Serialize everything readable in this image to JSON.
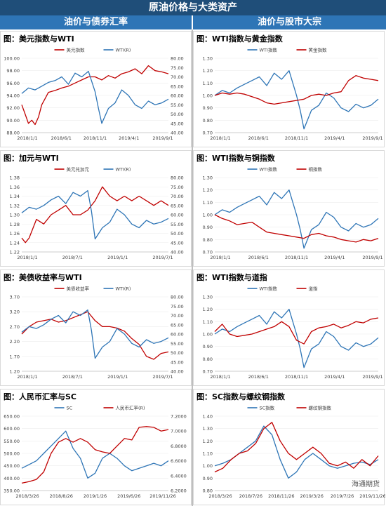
{
  "header": {
    "title": "原油价格与大类资产",
    "left_section": "油价与债券汇率",
    "right_section": "油价与股市大宗"
  },
  "watermark": "海通期货",
  "chart_data": [
    {
      "type": "line",
      "title": "图：美元指数与WTI",
      "xticks": [
        "2018/1/1",
        "2018/6/1",
        "2018/11/1",
        "2019/4/1",
        "2019/9/1"
      ],
      "xrange": [
        0,
        22
      ],
      "left_axis": {
        "min": 88,
        "max": 100,
        "ticks": [
          "100.00",
          "98.00",
          "96.00",
          "94.00",
          "92.00",
          "90.00",
          "88.00"
        ]
      },
      "right_axis": {
        "min": 40,
        "max": 80,
        "ticks": [
          "80.00",
          "75.00",
          "70.00",
          "65.00",
          "60.00",
          "55.00",
          "50.00",
          "45.00",
          "40.00"
        ]
      },
      "series": [
        {
          "name": "美元指数",
          "axis": "left",
          "color": "#c00000",
          "x": [
            0,
            0.5,
            1,
            1.5,
            2,
            2.5,
            3,
            3.5,
            4,
            5,
            6,
            7,
            8,
            9,
            10,
            11,
            12,
            13,
            14,
            15,
            16,
            17,
            18,
            19,
            20,
            21,
            22
          ],
          "y": [
            92.5,
            91,
            89.5,
            90,
            89.3,
            90.5,
            92.5,
            93.5,
            94.5,
            94.8,
            95.2,
            95.5,
            96,
            96.5,
            97,
            97,
            96.5,
            97.2,
            96.8,
            97.5,
            97.8,
            98.3,
            97.5,
            98.8,
            98,
            97.8,
            97.5
          ]
        },
        {
          "name": "WTI(R)",
          "axis": "right",
          "color": "#2e75b6",
          "x": [
            0,
            1,
            2,
            3,
            4,
            5,
            6,
            7,
            8,
            9,
            10,
            11,
            11.5,
            12,
            13,
            14,
            15,
            16,
            17,
            18,
            19,
            20,
            21,
            22
          ],
          "y": [
            61,
            64,
            63,
            65,
            67,
            68,
            70,
            66,
            72,
            70,
            73,
            62,
            53,
            45,
            53,
            56,
            63,
            60,
            55,
            53,
            57,
            55,
            56,
            58
          ]
        }
      ]
    },
    {
      "type": "line",
      "title": "图：WTI指数与黄金指数",
      "xticks": [
        "2018/1/1",
        "2018/6/1",
        "2018/11/1",
        "2019/4/1",
        "2019/9/1"
      ],
      "xrange": [
        0,
        22
      ],
      "left_axis": {
        "min": 0.7,
        "max": 1.3,
        "ticks": [
          "1.30",
          "1.20",
          "1.10",
          "1.00",
          "0.90",
          "0.80",
          "0.70"
        ]
      },
      "series": [
        {
          "name": "WTI指数",
          "axis": "left",
          "color": "#2e75b6",
          "x": [
            0,
            1,
            2,
            3,
            4,
            5,
            6,
            7,
            8,
            9,
            10,
            11,
            11.5,
            12,
            13,
            14,
            15,
            16,
            17,
            18,
            19,
            20,
            21,
            22
          ],
          "y": [
            1.0,
            1.04,
            1.02,
            1.06,
            1.09,
            1.12,
            1.15,
            1.08,
            1.18,
            1.13,
            1.2,
            1.0,
            0.88,
            0.73,
            0.88,
            0.92,
            1.02,
            0.98,
            0.9,
            0.87,
            0.93,
            0.9,
            0.92,
            0.97
          ]
        },
        {
          "name": "黄金指数",
          "axis": "left",
          "color": "#c00000",
          "x": [
            0,
            1,
            2,
            3,
            4,
            5,
            6,
            7,
            8,
            9,
            10,
            11,
            12,
            13,
            14,
            15,
            16,
            17,
            18,
            19,
            20,
            21,
            22
          ],
          "y": [
            1.0,
            1.02,
            1.01,
            1.02,
            1.01,
            0.99,
            0.97,
            0.94,
            0.93,
            0.94,
            0.95,
            0.96,
            0.97,
            1.0,
            1.01,
            1.0,
            1.02,
            1.03,
            1.12,
            1.16,
            1.14,
            1.13,
            1.12
          ]
        }
      ]
    },
    {
      "type": "line",
      "title": "图：加元与WTI",
      "xticks": [
        "2018/1/1",
        "2018/7/1",
        "2019/1/1",
        "2019/7/1"
      ],
      "xrange": [
        0,
        20
      ],
      "left_axis": {
        "min": 1.22,
        "max": 1.38,
        "ticks": [
          "1.38",
          "1.36",
          "1.34",
          "1.32",
          "1.30",
          "1.28",
          "1.26",
          "1.24",
          "1.22"
        ]
      },
      "right_axis": {
        "min": 40,
        "max": 80,
        "ticks": [
          "80.00",
          "75.00",
          "70.00",
          "65.00",
          "60.00",
          "55.00",
          "50.00",
          "45.00",
          "40.00"
        ]
      },
      "series": [
        {
          "name": "美元兑加元",
          "axis": "left",
          "color": "#c00000",
          "x": [
            0,
            0.5,
            1,
            1.5,
            2,
            3,
            4,
            5,
            6,
            7,
            8,
            9,
            10,
            11,
            12,
            13,
            14,
            15,
            16,
            17,
            18,
            19,
            20
          ],
          "y": [
            1.25,
            1.24,
            1.25,
            1.27,
            1.29,
            1.28,
            1.3,
            1.31,
            1.32,
            1.3,
            1.3,
            1.31,
            1.33,
            1.36,
            1.34,
            1.33,
            1.34,
            1.33,
            1.34,
            1.33,
            1.32,
            1.33,
            1.32
          ]
        },
        {
          "name": "WTI(R)",
          "axis": "right",
          "color": "#2e75b6",
          "x": [
            0,
            1,
            2,
            3,
            4,
            5,
            6,
            7,
            8,
            9,
            9.5,
            10,
            11,
            12,
            13,
            14,
            15,
            16,
            17,
            18,
            19,
            20
          ],
          "y": [
            61,
            64,
            63,
            65,
            68,
            70,
            66,
            72,
            70,
            73,
            62,
            47,
            53,
            56,
            63,
            60,
            55,
            53,
            57,
            55,
            56,
            58
          ]
        }
      ]
    },
    {
      "type": "line",
      "title": "图：WTI指数与铜指数",
      "xticks": [
        "2018/1/1",
        "2018/6/1",
        "2018/11/1",
        "2019/4/1",
        "2019/9/1"
      ],
      "xrange": [
        0,
        22
      ],
      "left_axis": {
        "min": 0.7,
        "max": 1.3,
        "ticks": [
          "1.30",
          "1.20",
          "1.10",
          "1.00",
          "0.90",
          "0.80",
          "0.70"
        ]
      },
      "series": [
        {
          "name": "WTI指数",
          "axis": "left",
          "color": "#2e75b6",
          "x": [
            0,
            1,
            2,
            3,
            4,
            5,
            6,
            7,
            8,
            9,
            10,
            11,
            11.5,
            12,
            13,
            14,
            15,
            16,
            17,
            18,
            19,
            20,
            21,
            22
          ],
          "y": [
            1.0,
            1.04,
            1.02,
            1.06,
            1.09,
            1.12,
            1.15,
            1.08,
            1.18,
            1.13,
            1.2,
            1.0,
            0.88,
            0.73,
            0.88,
            0.92,
            1.02,
            0.98,
            0.9,
            0.87,
            0.93,
            0.9,
            0.92,
            0.97
          ]
        },
        {
          "name": "铜指数",
          "axis": "left",
          "color": "#c00000",
          "x": [
            0,
            1,
            2,
            3,
            4,
            5,
            6,
            7,
            8,
            9,
            10,
            11,
            12,
            13,
            14,
            15,
            16,
            17,
            18,
            19,
            20,
            21,
            22
          ],
          "y": [
            1.0,
            0.97,
            0.95,
            0.92,
            0.93,
            0.94,
            0.9,
            0.86,
            0.85,
            0.84,
            0.83,
            0.82,
            0.81,
            0.84,
            0.85,
            0.83,
            0.82,
            0.8,
            0.79,
            0.78,
            0.8,
            0.79,
            0.81
          ]
        }
      ]
    },
    {
      "type": "line",
      "title": "图：美债收益率与WTI",
      "xticks": [
        "2018/1/1",
        "2018/7/1",
        "2019/1/1",
        "2019/7/1"
      ],
      "xrange": [
        0,
        20
      ],
      "left_axis": {
        "min": 1.2,
        "max": 3.7,
        "ticks": [
          "3.70",
          "3.20",
          "2.70",
          "2.20",
          "1.70",
          "1.20"
        ]
      },
      "right_axis": {
        "min": 40,
        "max": 80,
        "ticks": [
          "80.00",
          "75.00",
          "70.00",
          "65.00",
          "60.00",
          "55.00",
          "50.00",
          "45.00",
          "40.00"
        ]
      },
      "series": [
        {
          "name": "美债收益率",
          "axis": "left",
          "color": "#c00000",
          "x": [
            0,
            1,
            2,
            3,
            4,
            5,
            6,
            7,
            8,
            9,
            10,
            11,
            12,
            13,
            14,
            15,
            16,
            17,
            18,
            19,
            20
          ],
          "y": [
            2.45,
            2.7,
            2.85,
            2.9,
            2.95,
            2.85,
            2.9,
            3.0,
            3.1,
            3.2,
            2.9,
            2.7,
            2.7,
            2.65,
            2.55,
            2.3,
            2.1,
            1.7,
            1.6,
            1.8,
            1.85
          ]
        },
        {
          "name": "WTI(R)",
          "axis": "right",
          "color": "#2e75b6",
          "x": [
            0,
            1,
            2,
            3,
            4,
            5,
            6,
            7,
            8,
            9,
            9.5,
            10,
            11,
            12,
            13,
            14,
            15,
            16,
            17,
            18,
            19,
            20
          ],
          "y": [
            61,
            64,
            63,
            65,
            68,
            70,
            66,
            72,
            70,
            73,
            62,
            47,
            53,
            56,
            63,
            60,
            55,
            53,
            57,
            55,
            56,
            58
          ]
        }
      ]
    },
    {
      "type": "line",
      "title": "图：WTI指数与道指",
      "xticks": [
        "2018/1/1",
        "2018/6/1",
        "2018/11/1",
        "2019/4/1",
        "2019/9/1"
      ],
      "xrange": [
        0,
        22
      ],
      "left_axis": {
        "min": 0.7,
        "max": 1.3,
        "ticks": [
          "1.30",
          "1.20",
          "1.10",
          "1.00",
          "0.90",
          "0.80",
          "0.70"
        ]
      },
      "series": [
        {
          "name": "WTI指数",
          "axis": "left",
          "color": "#2e75b6",
          "x": [
            0,
            1,
            2,
            3,
            4,
            5,
            6,
            7,
            8,
            9,
            10,
            11,
            11.5,
            12,
            13,
            14,
            15,
            16,
            17,
            18,
            19,
            20,
            21,
            22
          ],
          "y": [
            1.0,
            1.04,
            1.02,
            1.06,
            1.09,
            1.12,
            1.15,
            1.08,
            1.18,
            1.13,
            1.2,
            1.0,
            0.88,
            0.73,
            0.88,
            0.92,
            1.02,
            0.98,
            0.9,
            0.87,
            0.93,
            0.9,
            0.92,
            0.97
          ]
        },
        {
          "name": "道指",
          "axis": "left",
          "color": "#c00000",
          "x": [
            0,
            1,
            2,
            3,
            4,
            5,
            6,
            7,
            8,
            9,
            10,
            11,
            12,
            13,
            14,
            15,
            16,
            17,
            18,
            19,
            20,
            21,
            22
          ],
          "y": [
            1.02,
            1.08,
            1.0,
            0.98,
            0.99,
            1.0,
            1.02,
            1.04,
            1.06,
            1.1,
            1.06,
            0.95,
            0.92,
            1.02,
            1.05,
            1.06,
            1.08,
            1.05,
            1.07,
            1.1,
            1.09,
            1.12,
            1.13
          ]
        }
      ]
    },
    {
      "type": "line",
      "title": "图：人民币汇率与SC",
      "xticks": [
        "2018/3/26",
        "2018/8/26",
        "2019/1/26",
        "2019/6/26",
        "2019/11/26"
      ],
      "xrange": [
        0,
        20
      ],
      "left_axis": {
        "min": 350,
        "max": 650,
        "ticks": [
          "650.00",
          "600.00",
          "550.00",
          "500.00",
          "450.00",
          "400.00",
          "350.00"
        ]
      },
      "right_axis": {
        "min": 6.2,
        "max": 7.2,
        "ticks": [
          "7.2000",
          "7.0000",
          "6.8000",
          "6.6000",
          "6.4000",
          "6.2000"
        ]
      },
      "series": [
        {
          "name": "SC",
          "axis": "left",
          "color": "#2e75b6",
          "x": [
            0,
            1,
            2,
            3,
            4,
            5,
            6,
            7,
            8,
            9,
            10,
            11,
            12,
            13,
            14,
            15,
            16,
            17,
            18,
            19,
            20
          ],
          "y": [
            440,
            455,
            470,
            500,
            530,
            560,
            590,
            520,
            480,
            400,
            420,
            480,
            500,
            480,
            450,
            430,
            440,
            450,
            460,
            450,
            470
          ]
        },
        {
          "name": "人民币汇率(R)",
          "axis": "right",
          "color": "#c00000",
          "x": [
            0,
            1,
            2,
            3,
            4,
            5,
            6,
            7,
            8,
            9,
            10,
            11,
            12,
            13,
            14,
            15,
            16,
            17,
            18,
            19,
            20
          ],
          "y": [
            6.3,
            6.32,
            6.35,
            6.45,
            6.7,
            6.85,
            6.9,
            6.85,
            6.9,
            6.85,
            6.75,
            6.72,
            6.7,
            6.8,
            6.9,
            6.88,
            7.05,
            7.06,
            7.05,
            7.0,
            7.02
          ]
        }
      ]
    },
    {
      "type": "line",
      "title": "图：SC指数与螺纹钢指数",
      "xticks": [
        "2018/3/26",
        "2018/7/26",
        "2018/11/26",
        "2019/3/26",
        "2019/7/26",
        "2019/11/26"
      ],
      "xrange": [
        0,
        20
      ],
      "left_axis": {
        "min": 0.8,
        "max": 1.4,
        "ticks": [
          "1.40",
          "1.30",
          "1.20",
          "1.10",
          "1.00",
          "0.90",
          "0.80"
        ]
      },
      "series": [
        {
          "name": "SC指数",
          "axis": "left",
          "color": "#2e75b6",
          "x": [
            0,
            1,
            2,
            3,
            4,
            5,
            6,
            7,
            8,
            9,
            10,
            11,
            12,
            13,
            14,
            15,
            16,
            17,
            18,
            19,
            20
          ],
          "y": [
            1.0,
            1.02,
            1.05,
            1.1,
            1.15,
            1.2,
            1.32,
            1.25,
            1.05,
            0.9,
            0.95,
            1.05,
            1.1,
            1.05,
            1.0,
            0.98,
            1.0,
            1.02,
            1.03,
            1.01,
            1.05
          ]
        },
        {
          "name": "螺纹钢指数",
          "axis": "left",
          "color": "#c00000",
          "x": [
            0,
            1,
            2,
            3,
            4,
            5,
            6,
            7,
            8,
            9,
            10,
            11,
            12,
            13,
            14,
            15,
            16,
            17,
            18,
            19,
            20
          ],
          "y": [
            0.95,
            0.98,
            1.05,
            1.1,
            1.12,
            1.18,
            1.3,
            1.35,
            1.2,
            1.1,
            1.05,
            1.1,
            1.15,
            1.1,
            1.02,
            1.0,
            1.03,
            0.98,
            1.05,
            1.0,
            1.08
          ]
        }
      ]
    }
  ]
}
